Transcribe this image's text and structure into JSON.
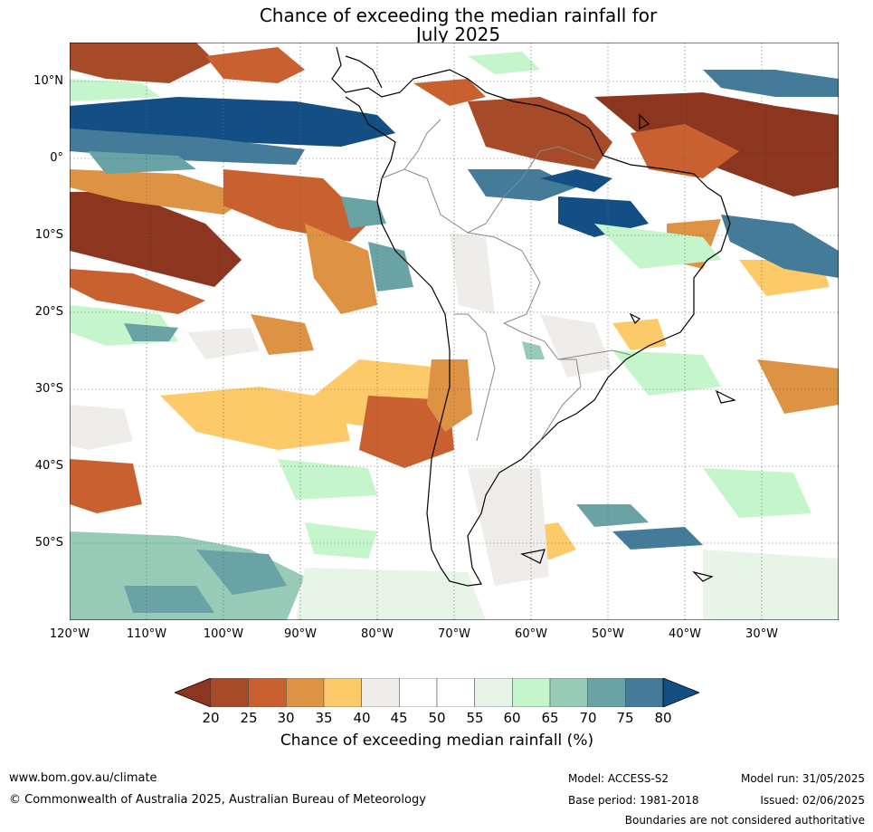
{
  "title": {
    "line1": "Chance of exceeding the median rainfall for",
    "line2": "July 2025"
  },
  "map": {
    "region": "South America",
    "lat_labels": [
      "10°N",
      "0°",
      "10°S",
      "20°S",
      "30°S",
      "40°S",
      "50°S"
    ],
    "lon_labels": [
      "120°W",
      "110°W",
      "100°W",
      "90°W",
      "80°W",
      "70°W",
      "60°W",
      "50°W",
      "40°W",
      "30°W"
    ]
  },
  "legend": {
    "ticks": [
      "20",
      "25",
      "30",
      "35",
      "40",
      "45",
      "50",
      "55",
      "60",
      "65",
      "70",
      "75",
      "80"
    ],
    "colors": [
      "#a74a28",
      "#c8612f",
      "#de9244",
      "#fdca6a",
      "#efede9",
      "#ffffff",
      "#ffffff",
      "#e7f5e7",
      "#c5f6cb",
      "#97cbb7",
      "#6aa3a5",
      "#437b98"
    ],
    "low_extend_color": "#8c3620",
    "high_extend_color": "#134e84",
    "label": "Chance of exceeding median rainfall (%)"
  },
  "footer": {
    "url": "www.bom.gov.au/climate",
    "copyright": "© Commonwealth of Australia 2025, Australian Bureau of Meteorology",
    "model": "Model: ACCESS-S2",
    "base_period": "Base period: 1981-2018",
    "model_run": "Model run: 31/05/2025",
    "issued": "Issued: 02/06/2025",
    "disclaimer": "Boundaries are not considered authoritative"
  }
}
